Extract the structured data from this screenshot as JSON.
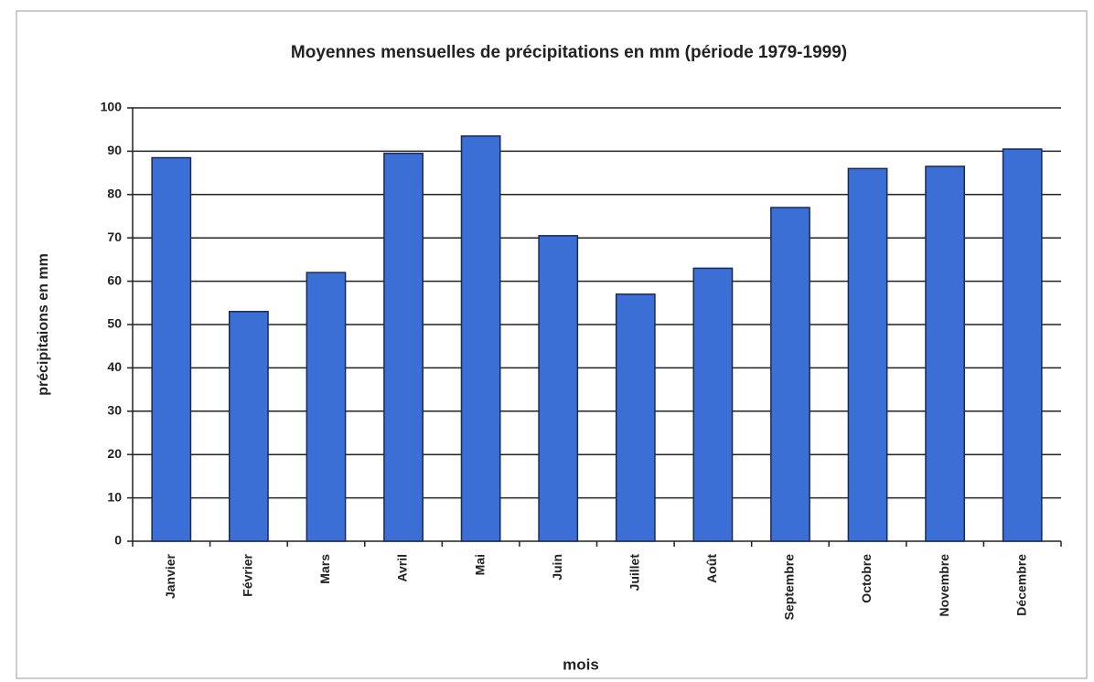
{
  "chart_data": {
    "type": "bar",
    "title": "Moyennes mensuelles de précipitations en mm (période 1979-1999)",
    "x_label": "mois",
    "y_label": "précipitaions en mm",
    "categories": [
      "Janvier",
      "Février",
      "Mars",
      "Avril",
      "Mai",
      "Juin",
      "Juillet",
      "Août",
      "Septembre",
      "Octobre",
      "Novembre",
      "Décembre"
    ],
    "values": [
      88.5,
      53,
      62,
      89.5,
      93.5,
      70.5,
      57,
      63,
      77,
      86,
      86.5,
      90.5
    ],
    "color": "#3b6fd6",
    "ylim": [
      0,
      100
    ],
    "yticks": [
      0,
      10,
      20,
      30,
      40,
      50,
      60,
      70,
      80,
      90,
      100
    ],
    "grid": true
  }
}
